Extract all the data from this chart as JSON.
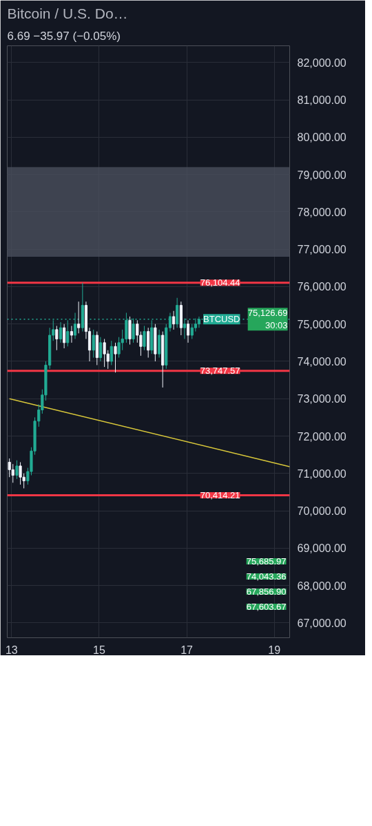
{
  "chart_data": {
    "type": "candlestick",
    "title": "Bitcoin / U.S. Do…",
    "subtitle": "6.69 −35.97 (−0.05%)",
    "x": [
      12.95,
      13.03,
      13.12,
      13.2,
      13.28,
      13.37,
      13.45,
      13.53,
      13.62,
      13.7,
      13.78,
      13.87,
      13.95,
      14.03,
      14.12,
      14.2,
      14.28,
      14.37,
      14.45,
      14.53,
      14.62,
      14.7,
      14.78,
      14.87,
      14.95,
      15.03,
      15.12,
      15.2,
      15.28,
      15.37,
      15.45,
      15.53,
      15.62,
      15.7,
      15.78,
      15.87,
      15.95,
      16.03,
      16.12,
      16.2,
      16.28,
      16.37,
      16.45,
      16.53,
      16.62,
      16.7,
      16.78,
      16.87,
      16.95,
      17.03,
      17.12,
      17.2,
      17.28
    ],
    "ohlc": [
      [
        71300,
        71400,
        70900,
        71100
      ],
      [
        71100,
        71250,
        70750,
        70950
      ],
      [
        70950,
        71350,
        70850,
        71200
      ],
      [
        71200,
        71300,
        70700,
        70900
      ],
      [
        70900,
        71000,
        70600,
        70800
      ],
      [
        70800,
        71150,
        70700,
        71050
      ],
      [
        71050,
        71700,
        70950,
        71600
      ],
      [
        71600,
        72500,
        71500,
        72400
      ],
      [
        72400,
        72850,
        72250,
        72700
      ],
      [
        72700,
        73250,
        72600,
        73100
      ],
      [
        73100,
        74000,
        72950,
        73900
      ],
      [
        73900,
        74900,
        73800,
        74700
      ],
      [
        74700,
        75100,
        74550,
        74850
      ],
      [
        74850,
        74950,
        74300,
        74600
      ],
      [
        74600,
        75050,
        74500,
        74900
      ],
      [
        74900,
        75000,
        74350,
        74500
      ],
      [
        74500,
        75100,
        74400,
        74800
      ],
      [
        74800,
        74950,
        74500,
        74700
      ],
      [
        74700,
        75300,
        74600,
        75000
      ],
      [
        75000,
        75600,
        74750,
        74900
      ],
      [
        74900,
        76104.44,
        74800,
        75500
      ],
      [
        75500,
        75600,
        74600,
        74800
      ],
      [
        74800,
        74900,
        74000,
        74300
      ],
      [
        74300,
        74850,
        74100,
        74700
      ],
      [
        74700,
        74800,
        73900,
        74100
      ],
      [
        74100,
        74650,
        74000,
        74500
      ],
      [
        74500,
        74600,
        73850,
        74200
      ],
      [
        74200,
        74300,
        73800,
        74000
      ],
      [
        74000,
        74550,
        73900,
        74400
      ],
      [
        74400,
        74500,
        73700,
        74200
      ],
      [
        74200,
        74650,
        74100,
        74500
      ],
      [
        74500,
        74850,
        74300,
        74600
      ],
      [
        74600,
        75300,
        74500,
        75100
      ],
      [
        75100,
        75200,
        74450,
        74600
      ],
      [
        74600,
        75150,
        74500,
        75000
      ],
      [
        75000,
        75100,
        74500,
        74700
      ],
      [
        74700,
        74800,
        74150,
        74400
      ],
      [
        74400,
        74950,
        74300,
        74800
      ],
      [
        74800,
        74900,
        74100,
        74300
      ],
      [
        74300,
        75100,
        74200,
        74900
      ],
      [
        74900,
        75000,
        74000,
        74200
      ],
      [
        74200,
        74850,
        74100,
        74700
      ],
      [
        74700,
        74800,
        73300,
        73900
      ],
      [
        73900,
        75000,
        73800,
        74900
      ],
      [
        74900,
        75300,
        74800,
        75200
      ],
      [
        75200,
        75350,
        74850,
        75000
      ],
      [
        75000,
        75700,
        74900,
        75500
      ],
      [
        75500,
        75600,
        74700,
        74900
      ],
      [
        74900,
        75150,
        74600,
        75000
      ],
      [
        75000,
        75100,
        74500,
        74700
      ],
      [
        74700,
        75000,
        74600,
        74900
      ],
      [
        74900,
        75150,
        74800,
        75000
      ],
      [
        75000,
        75200,
        74900,
        75126.69
      ]
    ],
    "colors": [
      "#f0f3fa",
      "#f0f3fa",
      "#22ab94",
      "#f0f3fa",
      "#f0f3fa",
      "#22ab94",
      "#22ab94",
      "#22ab94",
      "#22ab94",
      "#22ab94",
      "#22ab94",
      "#22ab94",
      "#22ab94",
      "#f0f3fa",
      "#22ab94",
      "#f0f3fa",
      "#22ab94",
      "#f0f3fa",
      "#22ab94",
      "#f0f3fa",
      "#22ab94",
      "#f0f3fa",
      "#f0f3fa",
      "#22ab94",
      "#f0f3fa",
      "#22ab94",
      "#f0f3fa",
      "#f0f3fa",
      "#22ab94",
      "#f0f3fa",
      "#22ab94",
      "#22ab94",
      "#22ab94",
      "#f0f3fa",
      "#22ab94",
      "#f0f3fa",
      "#f0f3fa",
      "#22ab94",
      "#f0f3fa",
      "#22ab94",
      "#f0f3fa",
      "#22ab94",
      "#f0f3fa",
      "#22ab94",
      "#22ab94",
      "#f0f3fa",
      "#22ab94",
      "#f0f3fa",
      "#22ab94",
      "#f0f3fa",
      "#22ab94",
      "#22ab94",
      "#22ab94"
    ],
    "series": [
      {
        "type": "line",
        "x": [
          12.95,
          19.35
        ],
        "values": [
          73000,
          71180
        ],
        "color": "#d9c83a"
      }
    ],
    "xlim": [
      12.9,
      19.35
    ],
    "xticks": [
      13,
      15,
      17,
      19
    ],
    "ylim": [
      66600,
      82450
    ],
    "yticks": [
      {
        "value": 67000,
        "label": "67,000.00"
      },
      {
        "value": 68000,
        "label": "68,000.00"
      },
      {
        "value": 69000,
        "label": "69,000.00"
      },
      {
        "value": 70000,
        "label": "70,000.00"
      },
      {
        "value": 71000,
        "label": "71,000.00"
      },
      {
        "value": 72000,
        "label": "72,000.00"
      },
      {
        "value": 73000,
        "label": "73,000.00"
      },
      {
        "value": 74000,
        "label": "74,000.00"
      },
      {
        "value": 75000,
        "label": "75,000.00"
      },
      {
        "value": 76000,
        "label": "76,000.00"
      },
      {
        "value": 77000,
        "label": "77,000.00"
      },
      {
        "value": 78000,
        "label": "78,000.00"
      },
      {
        "value": 79000,
        "label": "79,000.00"
      },
      {
        "value": 80000,
        "label": "80,000.00"
      },
      {
        "value": 81000,
        "label": "81,000.00"
      },
      {
        "value": 82000,
        "label": "82,000.00"
      }
    ],
    "grid": true,
    "ref_lines": [
      {
        "axis": "y",
        "value": 76104.44,
        "label": "76,104.44",
        "color": "#f23645"
      },
      {
        "axis": "y",
        "value": 73747.57,
        "label": "73,747.57",
        "color": "#f23645"
      },
      {
        "axis": "y",
        "value": 70414.21,
        "label": "70,414.21",
        "color": "#f23645"
      },
      {
        "axis": "y",
        "value": 75126.69,
        "label": "BTCUSD",
        "color": "#22ab94",
        "line_style": "dotted"
      }
    ],
    "bands": [
      {
        "axis": "y",
        "from": 76800,
        "to": 79200,
        "color": "#4a4f5c"
      }
    ],
    "annotations": [
      "75,685.97",
      {
        "text": "75,126.69\n30:03",
        "x": 19.35,
        "y": 75126.69
      },
      "74,043.36",
      "67,856.90",
      "67,603.67"
    ]
  }
}
